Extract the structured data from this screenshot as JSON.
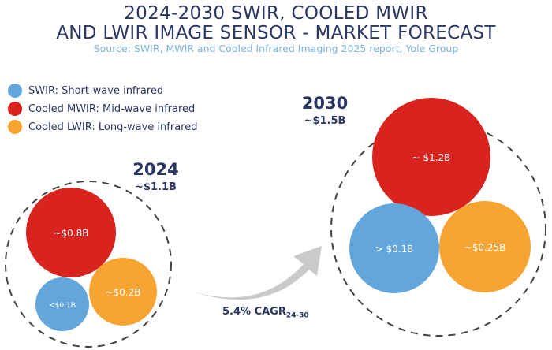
{
  "title_line1": "2024-2030 SWIR, COOLED MWIR",
  "title_line2": "AND LWIR IMAGE SENSOR - MARKET FORECAST",
  "source": "Source: SWIR, MWIR and Cooled Infrared Imaging 2025 report, Yole Group",
  "legend": [
    {
      "label": "SWIR: Short-wave infrared",
      "color": "#62a6dc"
    },
    {
      "label": "Cooled MWIR: Mid-wave infrared",
      "color": "#d8231f"
    },
    {
      "label": "Cooled LWIR: Long-wave infrared",
      "color": "#f7a432"
    }
  ],
  "year2024": {
    "year": "2024",
    "total": "~$1.1B",
    "swir": "<$0.1B",
    "mwir": "~$0.8B",
    "lwir": "~$0.2B"
  },
  "year2030": {
    "year": "2030",
    "total": "~$1.5B",
    "swir": "> $0.1B",
    "mwir": "~ $1.2B",
    "lwir": "~$0.25B"
  },
  "cagr": {
    "value": "5.4% CAGR",
    "period": "24-30"
  }
}
